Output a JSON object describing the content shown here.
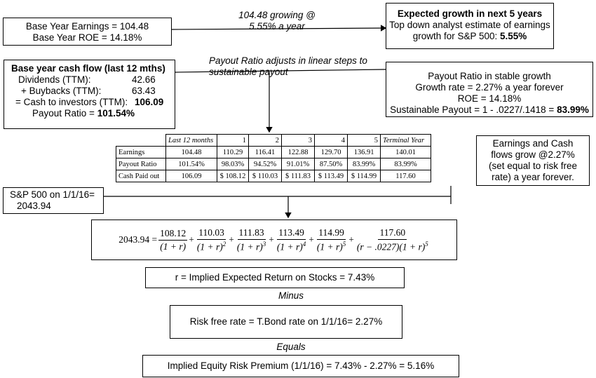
{
  "base_earnings": {
    "line1": "Base Year Earnings = 104.48",
    "line2": "Base Year ROE = 14.18%"
  },
  "growth_note": {
    "line1": "104.48 growing @",
    "line2": "5.55% a year"
  },
  "expected_growth": {
    "title": "Expected growth in next 5 years",
    "line2": "Top down analyst estimate of earnings",
    "line3_prefix": "growth for S&P 500: ",
    "line3_value": "5.55%"
  },
  "base_cash_flow": {
    "title": "Base year cash flow  (last 12 mths)",
    "rows": [
      {
        "label": "Dividends (TTM):",
        "value": "42.66"
      },
      {
        "label": "+ Buybacks (TTM):",
        "value": "63.43"
      },
      {
        "label": "= Cash to investors (TTM):",
        "value": "106.09"
      }
    ],
    "payout_label": "Payout Ratio = ",
    "payout_value": "101.54%"
  },
  "payout_note": {
    "line1": "Payout Ratio adjusts in linear steps to",
    "line2": "sustainable payout"
  },
  "stable_growth": {
    "line1": "Payout Ratio in stable growth",
    "line2": "Growth rate = 2.27% a year forever",
    "line3": "ROE = 14.18%",
    "line4_prefix": "Sustainable Payout = 1 - .0227/.1418 = ",
    "line4_value": "83.99%"
  },
  "table": {
    "headers": [
      "",
      "Last 12 months",
      "1",
      "2",
      "3",
      "4",
      "5",
      "Terminal Year"
    ],
    "rows": [
      [
        "Earnings",
        "104.48",
        "110.29",
        "116.41",
        "122.88",
        "129.70",
        "136.91",
        "140.01"
      ],
      [
        "Payout Ratio",
        "101.54%",
        "98.03%",
        "94.52%",
        "91.01%",
        "87.50%",
        "83.99%",
        "83.99%"
      ],
      [
        "Cash Paid out",
        "106.09",
        "$ 108.12",
        "$ 110.03",
        "$ 111.83",
        "$ 113.49",
        "$ 114.99",
        "117.60"
      ]
    ]
  },
  "earnings_grow_note": {
    "line1": "Earnings and Cash",
    "line2": "flows grow @2.27%",
    "line3": "(set equal to risk free",
    "line4": "rate) a year forever."
  },
  "sp500": {
    "line1": "S&P 500 on 1/1/16=",
    "line2": "2043.94"
  },
  "equation": {
    "lhs": "2043.94 =",
    "terms": [
      {
        "num": "108.12",
        "den": "(1 + r)",
        "exp": ""
      },
      {
        "num": "110.03",
        "den": "(1 + r)",
        "exp": "2"
      },
      {
        "num": "111.83",
        "den": "(1 + r)",
        "exp": "3"
      },
      {
        "num": "113.49",
        "den": "(1 + r)",
        "exp": "4"
      },
      {
        "num": "114.99",
        "den": "(1 + r)",
        "exp": "5"
      }
    ],
    "terminal_num": "117.60",
    "terminal_den_a": "(r − .0227)(1 + r)",
    "terminal_den_exp": "5",
    "plus": "+"
  },
  "implied_return": "r = Implied Expected Return on Stocks = 7.43%",
  "minus_label": "Minus",
  "risk_free": "Risk free rate = T.Bond rate on 1/1/16= 2.27%",
  "equals_label": "Equals",
  "erp": "Implied Equity Risk Premium (1/1/16) = 7.43% - 2.27% = 5.16%"
}
